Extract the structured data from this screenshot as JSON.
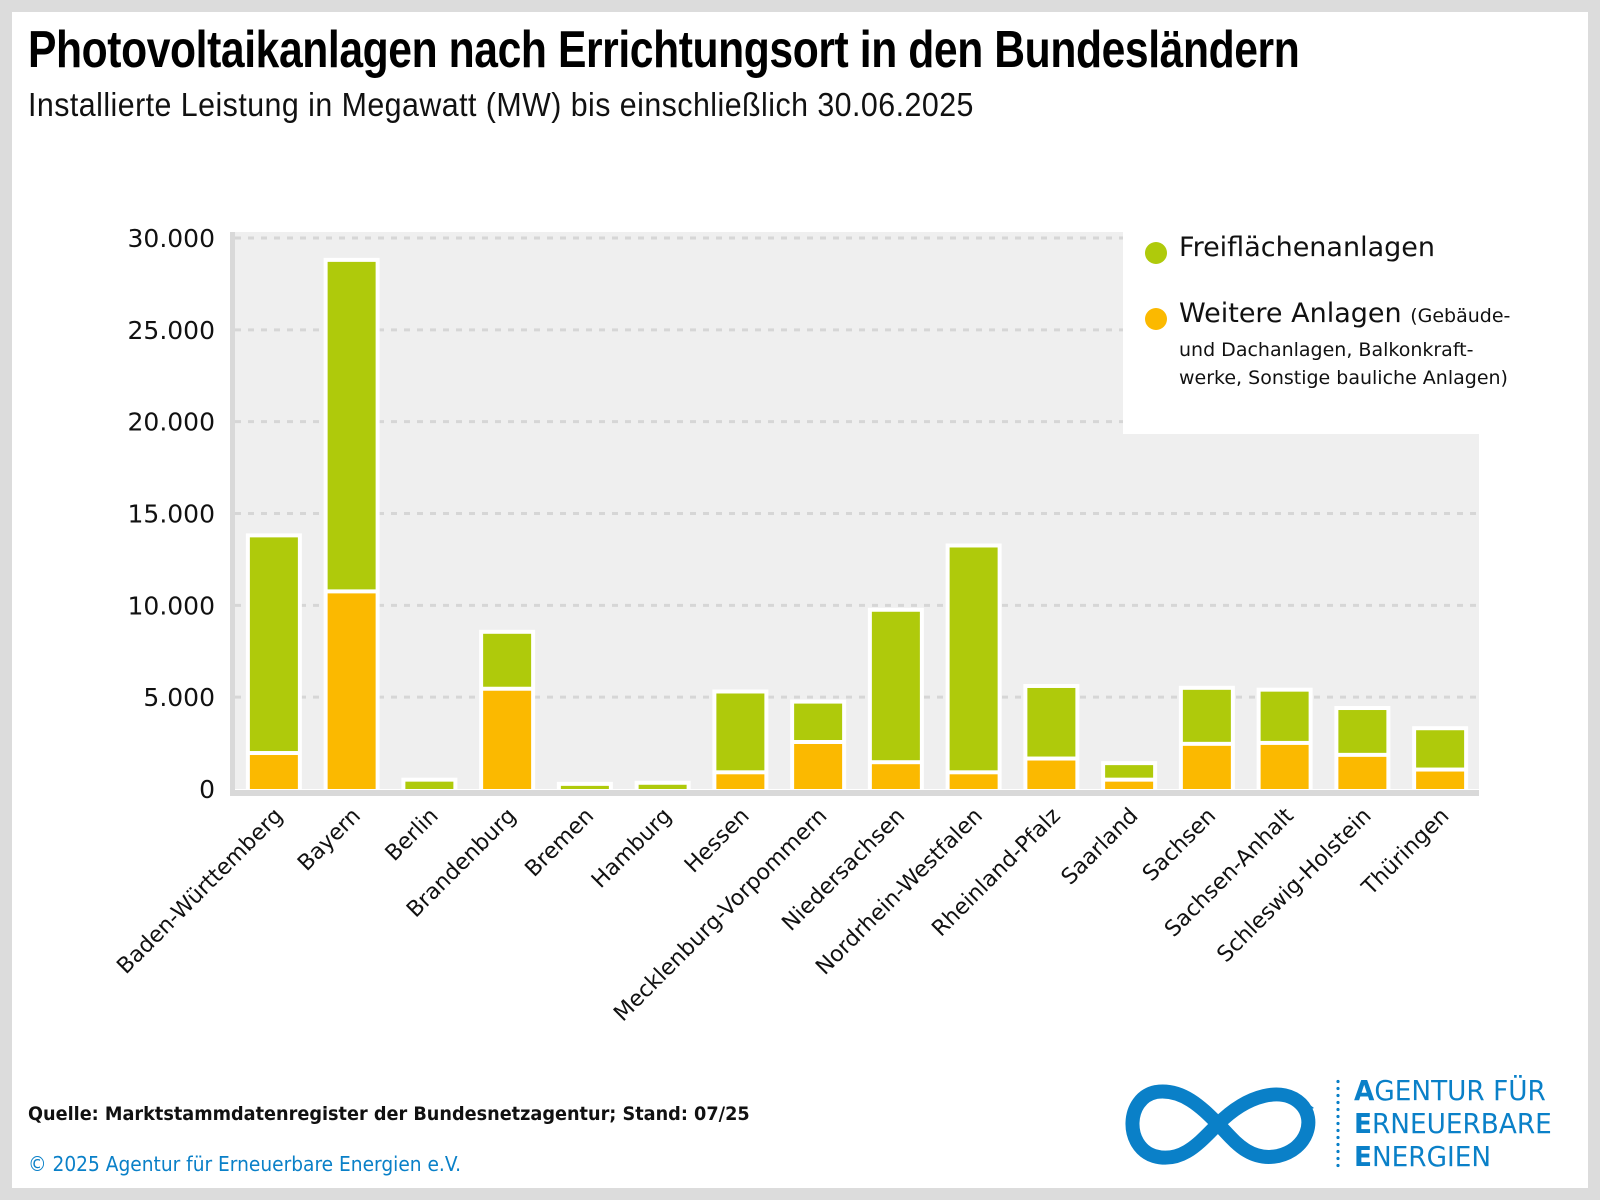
{
  "header": {
    "title": "Photovoltaikanlagen nach Errichtungsort in den Bundesländern",
    "subtitle": "Installierte Leistung in Megawatt (MW) bis einschließlich 30.06.2025"
  },
  "legend": {
    "items": [
      {
        "label": "Freiflächenanlagen",
        "color": "#afca0b"
      },
      {
        "label": "Weitere Anlagen",
        "note_first": "(Gebäude-",
        "note_lines": [
          "und Dachanlagen, Balkonkraft-",
          "werke, Sonstige bauliche Anlagen)"
        ],
        "color": "#fbb900"
      }
    ]
  },
  "footer": {
    "source": "Quelle: Marktstammdatenregister der Bundesnetzagentur; Stand: 07/25",
    "copyright": "© 2025 Agentur für Erneuerbare Energien e.V."
  },
  "logo": {
    "icon": "infinity-arrow-icon",
    "lines": [
      {
        "initial": "A",
        "rest": "GENTUR FÜR"
      },
      {
        "initial": "E",
        "rest": "RNEUERBARE"
      },
      {
        "initial": "E",
        "rest": "NERGIEN"
      }
    ],
    "color": "#0a80c8"
  },
  "chart_data": {
    "type": "bar",
    "stacked": true,
    "title": "Photovoltaikanlagen nach Errichtungsort in den Bundesländern",
    "subtitle": "Installierte Leistung in Megawatt (MW) bis einschließlich 30.06.2025",
    "xlabel": "",
    "ylabel": "",
    "unit": "MW",
    "ylim": [
      0,
      30000
    ],
    "yticks": [
      0,
      5000,
      10000,
      15000,
      20000,
      25000,
      30000
    ],
    "ytick_labels": [
      "0",
      "5.000",
      "10.000",
      "15.000",
      "20.000",
      "25.000",
      "30.000"
    ],
    "grid": true,
    "legend_position": "top-right",
    "categories": [
      "Baden-Württemberg",
      "Bayern",
      "Berlin",
      "Brandenburg",
      "Bremen",
      "Hamburg",
      "Hessen",
      "Mecklenburg-Vorpommern",
      "Niedersachsen",
      "Nordrhein-Westfalen",
      "Rheinland-Pfalz",
      "Saarland",
      "Sachsen",
      "Sachsen-Anhalt",
      "Schleswig-Holstein",
      "Thüringen"
    ],
    "series": [
      {
        "name": "Weitere Anlagen (Gebäude- und Dachanlagen, Balkonkraftwerke, Sonstige bauliche Anlagen)",
        "color": "#fbb900",
        "values": [
          1850,
          10650,
          0,
          5350,
          0,
          0,
          800,
          2450,
          1350,
          800,
          1550,
          400,
          2350,
          2400,
          1750,
          950
        ]
      },
      {
        "name": "Freiflächenanlagen",
        "color": "#afca0b",
        "values": [
          11850,
          18050,
          400,
          3100,
          170,
          230,
          4400,
          2200,
          8300,
          12350,
          3950,
          900,
          3050,
          2900,
          2550,
          2250
        ]
      }
    ]
  }
}
